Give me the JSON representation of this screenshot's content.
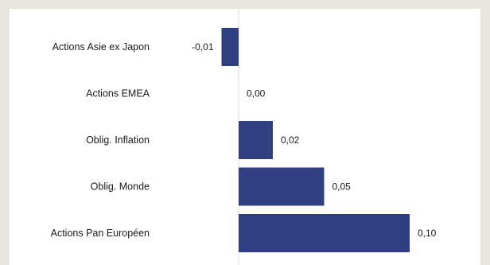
{
  "chart_data": {
    "type": "bar",
    "orientation": "horizontal",
    "categories": [
      "Actions Asie ex Japon",
      "Actions EMEA",
      "Oblig. Inflation",
      "Oblig. Monde",
      "Actions Pan Européen"
    ],
    "values": [
      -0.01,
      0.0,
      0.02,
      0.05,
      0.1
    ],
    "value_labels": [
      "-0,01",
      "0,00",
      "0,02",
      "0,05",
      "0,10"
    ],
    "title": "",
    "xlabel": "",
    "ylabel": "",
    "xlim": [
      -0.01,
      0.1
    ],
    "grid": false,
    "legend": "none",
    "colors": {
      "bar": "#2f3f7f",
      "axis": "#d9d9d9",
      "background": "#e9e5df",
      "panel": "#ffffff"
    }
  }
}
